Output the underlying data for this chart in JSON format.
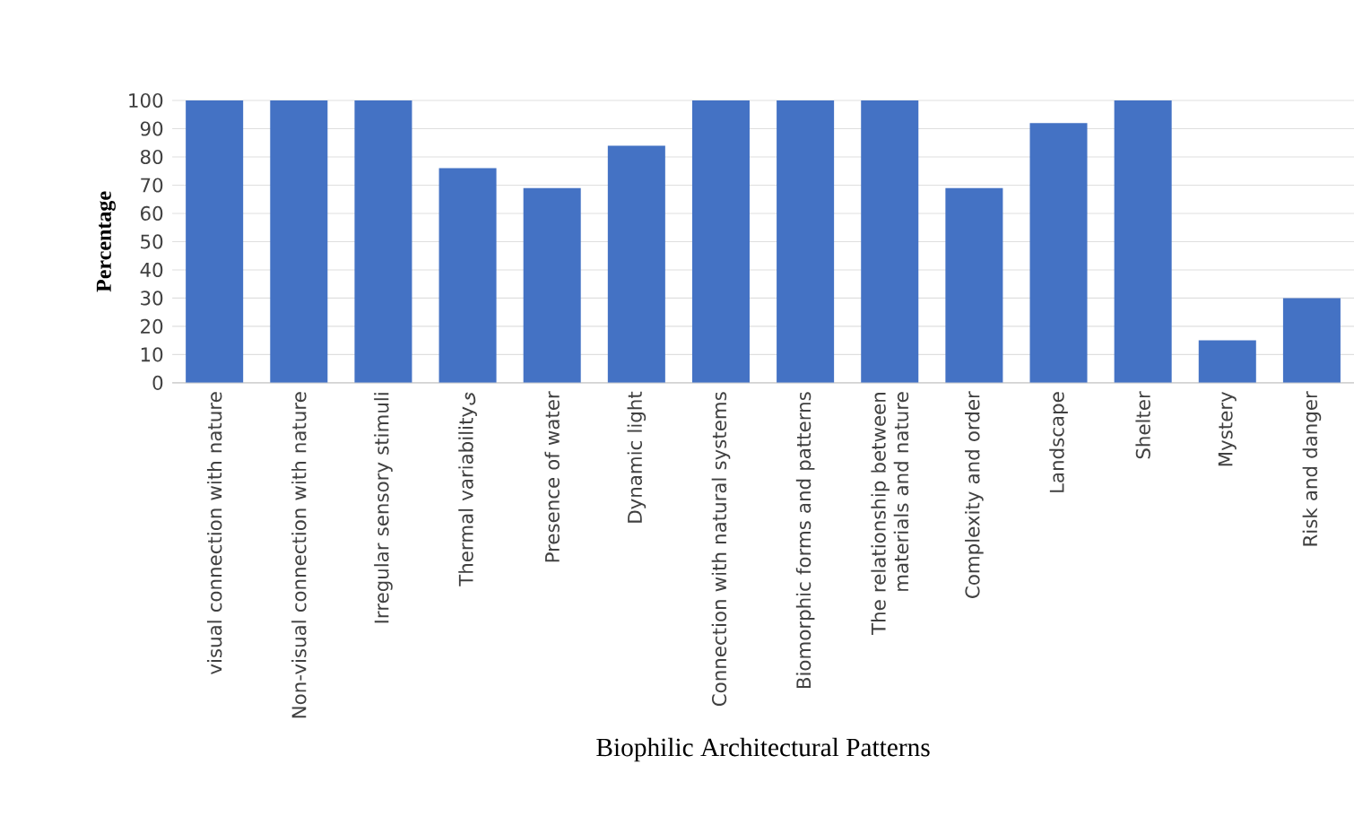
{
  "chart_data": {
    "type": "bar",
    "xlabel": "Biophilic Architectural Patterns",
    "ylabel": "Percentage",
    "categories": [
      "visual connection with nature",
      "Non-visual connection with nature",
      "Irregular sensory stimuli",
      "Thermal variabilityی",
      "Presence of water",
      "Dynamic light",
      "Connection with natural systems",
      "Biomorphic forms and patterns",
      "The relationship between materials and nature",
      "Complexity and order",
      "Landscape",
      "Shelter",
      "Mystery",
      "Risk and danger"
    ],
    "values": [
      100,
      100,
      100,
      76,
      69,
      84,
      100,
      100,
      100,
      69,
      92,
      100,
      15,
      30
    ],
    "color": "#4472c4",
    "ylim": [
      0,
      100
    ],
    "yticks": [
      0,
      10,
      20,
      30,
      40,
      50,
      60,
      70,
      80,
      90,
      100
    ],
    "grid": "y"
  }
}
